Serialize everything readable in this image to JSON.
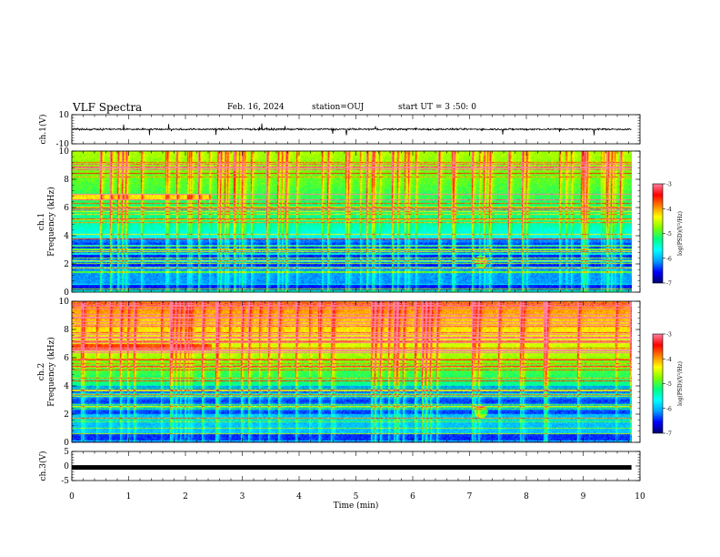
{
  "header": {
    "title": "VLF Spectra",
    "date": "Feb. 16, 2024",
    "station": "station=OUJ",
    "start": "start UT =  3 :50: 0"
  },
  "colors": {
    "colormap": [
      "#000070",
      "#0000ff",
      "#00a0ff",
      "#00ffff",
      "#00ff80",
      "#80ff00",
      "#ffff00",
      "#ff8000",
      "#ff0000",
      "#ff80a0",
      "#ffffff"
    ]
  },
  "chart_data": [
    {
      "type": "line",
      "panel": "ch1-waveform",
      "ylabel": "ch.1(V)",
      "ylim": [
        -10,
        10
      ],
      "yticks": [
        "10",
        "-10"
      ],
      "baseline": 0,
      "noise": "low-amplitude with occasional spikes"
    },
    {
      "type": "heatmap",
      "panel": "ch1-spectrogram",
      "ylabel_top": "ch.1",
      "ylabel": "Frequency (kHz)",
      "ylim": [
        0,
        10
      ],
      "yticks": [
        "0",
        "2",
        "4",
        "6",
        "8",
        "10"
      ],
      "colorbar": {
        "label": "log(PSD)(V²/Hz)",
        "range": [
          -7,
          -3
        ],
        "ticks": [
          "-3",
          "-4",
          "-5",
          "-6",
          "-7"
        ]
      }
    },
    {
      "type": "heatmap",
      "panel": "ch2-spectrogram",
      "ylabel_top": "ch.2",
      "ylabel": "Frequency (kHz)",
      "ylim": [
        0,
        10
      ],
      "yticks": [
        "0",
        "2",
        "4",
        "6",
        "8",
        "10"
      ],
      "colorbar": {
        "label": "log(PSD)(V²/Hz)",
        "range": [
          -7,
          -3
        ],
        "ticks": [
          "-3",
          "-4",
          "-5",
          "-6",
          "-7"
        ]
      }
    },
    {
      "type": "line",
      "panel": "ch3-waveform",
      "ylabel": "ch.3(V)",
      "ylim": [
        -5,
        5
      ],
      "yticks": [
        "5",
        "0",
        "-5"
      ],
      "baseline": -0.5,
      "noise": "thick constant trace"
    }
  ],
  "xaxis": {
    "label": "Time (min)",
    "range": [
      0,
      10
    ],
    "ticks": [
      "0",
      "1",
      "2",
      "3",
      "4",
      "5",
      "6",
      "7",
      "8",
      "9",
      "10"
    ],
    "data_end": 9.85
  }
}
